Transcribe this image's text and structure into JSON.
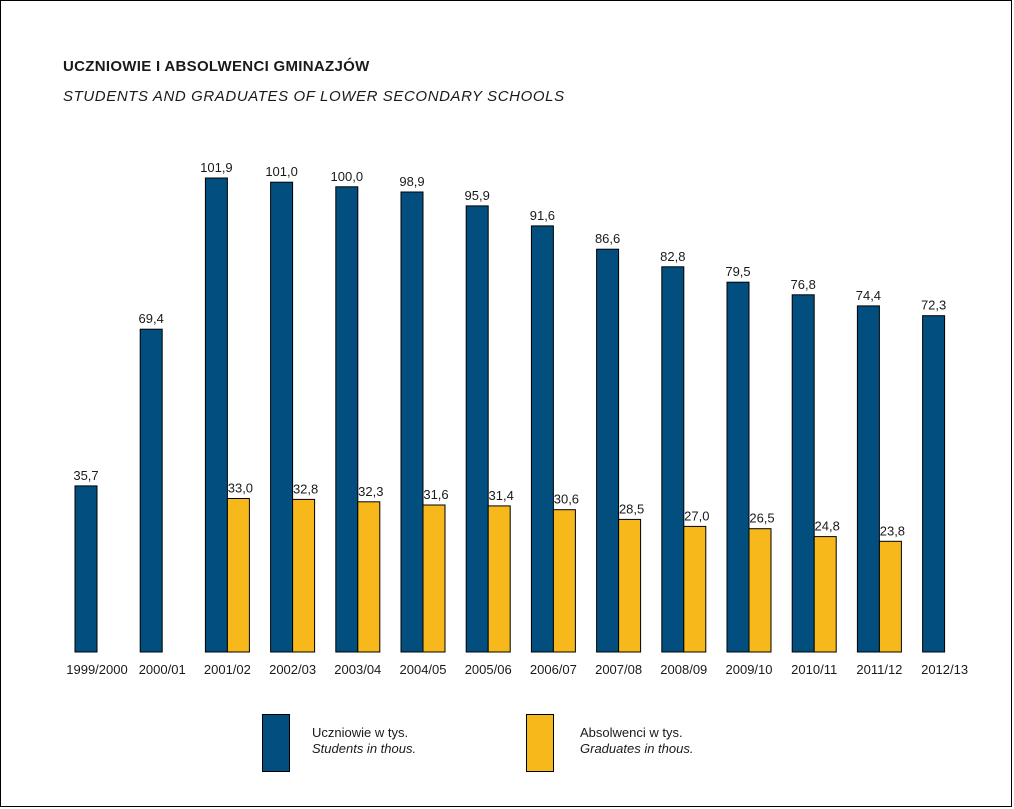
{
  "header": {
    "title": "UCZNIOWIE I ABSOLWENCI GMINAZJÓW",
    "subtitle": "STUDENTS AND GRADUATES OF LOWER SECONDARY SCHOOLS"
  },
  "colors": {
    "students": "#024f7f",
    "graduates": "#f6b81b"
  },
  "legend": {
    "students_pl": "Uczniowie w tys.",
    "students_en": "Students in thous.",
    "graduates_pl": "Absolwenci w tys.",
    "graduates_en": "Graduates in thous."
  },
  "chart_data": {
    "type": "bar",
    "title": "UCZNIOWIE I ABSOLWENCI GMINAZJÓW",
    "subtitle": "STUDENTS AND GRADUATES OF LOWER SECONDARY SCHOOLS",
    "legend_placement": "bottom",
    "grid": false,
    "ylim": [
      0,
      101.9
    ],
    "categories": [
      "1999/2000",
      "2000/01",
      "2001/02",
      "2002/03",
      "2003/04",
      "2004/05",
      "2005/06",
      "2006/07",
      "2007/08",
      "2008/09",
      "2009/10",
      "2010/11",
      "2011/12",
      "2012/13"
    ],
    "series": [
      {
        "name": "Uczniowie w tys. / Students in thous.",
        "values": [
          35.7,
          69.4,
          101.9,
          101.0,
          100.0,
          98.9,
          95.9,
          91.6,
          86.6,
          82.8,
          79.5,
          76.8,
          74.4,
          72.3
        ],
        "labels": [
          "35,7",
          "69,4",
          "101,9",
          "101,0",
          "100,0",
          "98,9",
          "95,9",
          "91,6",
          "86,6",
          "82,8",
          "79,5",
          "76,8",
          "74,4",
          "72,3"
        ]
      },
      {
        "name": "Absolwenci w tys. / Graduates in thous.",
        "values": [
          null,
          null,
          33.0,
          32.8,
          32.3,
          31.6,
          31.4,
          30.6,
          28.5,
          27.0,
          26.5,
          24.8,
          23.8,
          null
        ],
        "labels": [
          null,
          null,
          "33,0",
          "32,8",
          "32,3",
          "31,6",
          "31,4",
          "30,6",
          "28,5",
          "27,0",
          "26,5",
          "24,8",
          "23,8",
          null
        ]
      }
    ]
  }
}
